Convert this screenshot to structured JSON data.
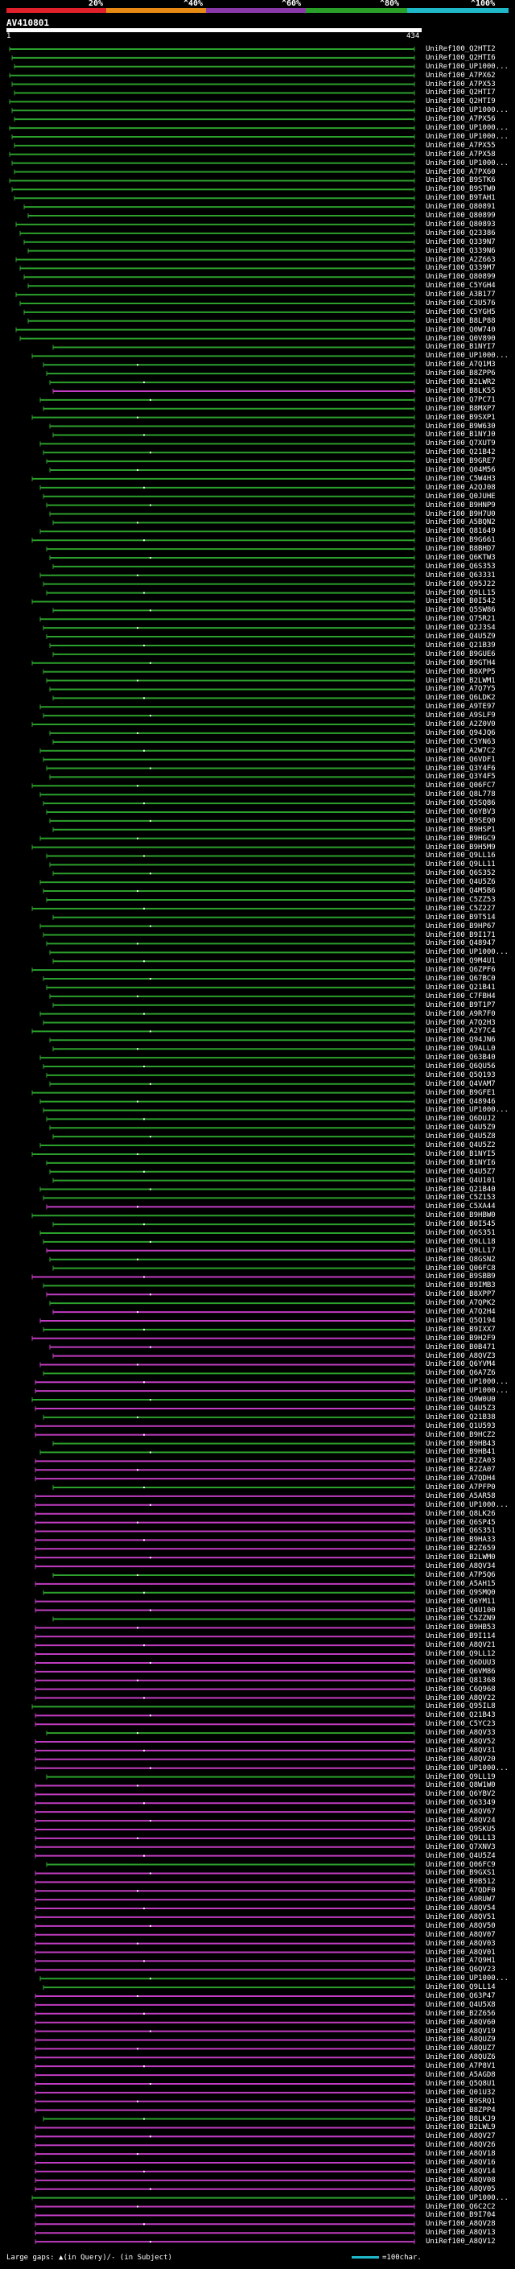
{
  "header": {
    "percent_labels": [
      "20%",
      "^40%",
      "^60%",
      "^80%",
      "^100%"
    ],
    "color_scale": [
      "#e0202a",
      "#e88a16",
      "#8a3aa8",
      "#2aa02a",
      "#1fb8c8"
    ],
    "query_name": "AV410801",
    "query_start": "1",
    "query_end": "434"
  },
  "hit_colors": {
    "green": "#2ca02c",
    "magenta": "#c03cc0",
    "gap": "#ffffff"
  },
  "hits": [
    {
      "label": "UniRef100_Q2HTI2",
      "c": "g"
    },
    {
      "label": "UniRef100_Q2HTI6",
      "c": "g"
    },
    {
      "label": "UniRef100_UP1000...",
      "c": "g"
    },
    {
      "label": "UniRef100_A7PX62",
      "c": "g"
    },
    {
      "label": "UniRef100_A7PX53",
      "c": "g"
    },
    {
      "label": "UniRef100_Q2HTI7",
      "c": "g"
    },
    {
      "label": "UniRef100_Q2HTI9",
      "c": "g"
    },
    {
      "label": "UniRef100_UP1000...",
      "c": "g"
    },
    {
      "label": "UniRef100_A7PX56",
      "c": "g"
    },
    {
      "label": "UniRef100_UP1000...",
      "c": "g"
    },
    {
      "label": "UniRef100_UP1000...",
      "c": "g"
    },
    {
      "label": "UniRef100_A7PX55",
      "c": "g"
    },
    {
      "label": "UniRef100_A7PX58",
      "c": "g"
    },
    {
      "label": "UniRef100_UP1000...",
      "c": "g"
    },
    {
      "label": "UniRef100_A7PX60",
      "c": "g"
    },
    {
      "label": "UniRef100_B9STK6",
      "c": "g"
    },
    {
      "label": "UniRef100_B9STW0",
      "c": "g"
    },
    {
      "label": "UniRef100_B9TAH1",
      "c": "g"
    },
    {
      "label": "UniRef100_Q80891",
      "c": "g"
    },
    {
      "label": "UniRef100_Q80899",
      "c": "g"
    },
    {
      "label": "UniRef100_Q80893",
      "c": "g"
    },
    {
      "label": "UniRef100_Q23386",
      "c": "g"
    },
    {
      "label": "UniRef100_Q339N7",
      "c": "g"
    },
    {
      "label": "UniRef100_Q339N6",
      "c": "g"
    },
    {
      "label": "UniRef100_A2Z663",
      "c": "g"
    },
    {
      "label": "UniRef100_Q339M7",
      "c": "g"
    },
    {
      "label": "UniRef100_Q80899",
      "c": "g"
    },
    {
      "label": "UniRef100_C5YGH4",
      "c": "g"
    },
    {
      "label": "UniRef100_A3B177",
      "c": "g"
    },
    {
      "label": "UniRef100_C3U576",
      "c": "g"
    },
    {
      "label": "UniRef100_C5YGH5",
      "c": "g"
    },
    {
      "label": "UniRef100_B8LP88",
      "c": "g"
    },
    {
      "label": "UniRef100_Q0W740",
      "c": "g"
    },
    {
      "label": "UniRef100_Q0V890",
      "c": "g"
    },
    {
      "label": "UniRef100_B1NYI7",
      "c": "g"
    },
    {
      "label": "UniRef100_UP1000...",
      "c": "g"
    },
    {
      "label": "UniRef100_A7Q1M3",
      "c": "g"
    },
    {
      "label": "UniRef100_B8ZPP6",
      "c": "g"
    },
    {
      "label": "UniRef100_B2LWR2",
      "c": "g"
    },
    {
      "label": "UniRef100_B8LK55",
      "c": "m"
    },
    {
      "label": "UniRef100_Q7PC71",
      "c": "g"
    },
    {
      "label": "UniRef100_B8MXP7",
      "c": "g"
    },
    {
      "label": "UniRef100_B9SXP1",
      "c": "g"
    },
    {
      "label": "UniRef100_B9W630",
      "c": "g"
    },
    {
      "label": "UniRef100_B1NYJ0",
      "c": "g"
    },
    {
      "label": "UniRef100_Q7XUT9",
      "c": "g"
    },
    {
      "label": "UniRef100_Q21B42",
      "c": "g"
    },
    {
      "label": "UniRef100_B9GRE7",
      "c": "g"
    },
    {
      "label": "UniRef100_Q04M56",
      "c": "g"
    },
    {
      "label": "UniRef100_C5W4H3",
      "c": "g"
    },
    {
      "label": "UniRef100_A2QJ08",
      "c": "g"
    },
    {
      "label": "UniRef100_Q0JUHE",
      "c": "g"
    },
    {
      "label": "UniRef100_B9HNP9",
      "c": "g"
    },
    {
      "label": "UniRef100_B9H7U0",
      "c": "g"
    },
    {
      "label": "UniRef100_A5BQN2",
      "c": "g"
    },
    {
      "label": "UniRef100_Q81649",
      "c": "g"
    },
    {
      "label": "UniRef100_B9G661",
      "c": "g"
    },
    {
      "label": "UniRef100_B8BHD7",
      "c": "g"
    },
    {
      "label": "UniRef100_Q6KTW3",
      "c": "g"
    },
    {
      "label": "UniRef100_Q6S353",
      "c": "g"
    },
    {
      "label": "UniRef100_Q63331",
      "c": "g"
    },
    {
      "label": "UniRef100_Q95J22",
      "c": "g"
    },
    {
      "label": "UniRef100_Q9LL15",
      "c": "g"
    },
    {
      "label": "UniRef100_B0I542",
      "c": "g"
    },
    {
      "label": "UniRef100_Q5SW86",
      "c": "g"
    },
    {
      "label": "UniRef100_Q75R21",
      "c": "g"
    },
    {
      "label": "UniRef100_Q2J3S4",
      "c": "g"
    },
    {
      "label": "UniRef100_Q4U5Z9",
      "c": "g"
    },
    {
      "label": "UniRef100_Q21B39",
      "c": "g"
    },
    {
      "label": "UniRef100_B9GUE6",
      "c": "g"
    },
    {
      "label": "UniRef100_B9GTH4",
      "c": "g"
    },
    {
      "label": "UniRef100_B8XPP5",
      "c": "g"
    },
    {
      "label": "UniRef100_B2LWM1",
      "c": "g"
    },
    {
      "label": "UniRef100_A7Q7Y5",
      "c": "g"
    },
    {
      "label": "UniRef100_Q6LDK2",
      "c": "g"
    },
    {
      "label": "UniRef100_A9TE97",
      "c": "g"
    },
    {
      "label": "UniRef100_A9SLF9",
      "c": "g"
    },
    {
      "label": "UniRef100_A2Z0V0",
      "c": "g"
    },
    {
      "label": "UniRef100_Q94JQ6",
      "c": "g"
    },
    {
      "label": "UniRef100_C5YN63",
      "c": "g"
    },
    {
      "label": "UniRef100_A2W7C2",
      "c": "g"
    },
    {
      "label": "UniRef100_Q6VDF1",
      "c": "g"
    },
    {
      "label": "UniRef100_Q3Y4F6",
      "c": "g"
    },
    {
      "label": "UniRef100_Q3Y4F5",
      "c": "g"
    },
    {
      "label": "UniRef100_Q06FC7",
      "c": "g"
    },
    {
      "label": "UniRef100_Q8L778",
      "c": "g"
    },
    {
      "label": "UniRef100_Q5SQ86",
      "c": "g"
    },
    {
      "label": "UniRef100_Q6YBV3",
      "c": "g"
    },
    {
      "label": "UniRef100_B9SEQ0",
      "c": "g"
    },
    {
      "label": "UniRef100_B9HSP1",
      "c": "g"
    },
    {
      "label": "UniRef100_B9HGC9",
      "c": "g"
    },
    {
      "label": "UniRef100_B9H5M9",
      "c": "g"
    },
    {
      "label": "UniRef100_Q9LL16",
      "c": "g"
    },
    {
      "label": "UniRef100_Q9LL11",
      "c": "g"
    },
    {
      "label": "UniRef100_Q6S352",
      "c": "g"
    },
    {
      "label": "UniRef100_Q4U5Z6",
      "c": "g"
    },
    {
      "label": "UniRef100_Q4M5B6",
      "c": "g"
    },
    {
      "label": "UniRef100_C5ZZ53",
      "c": "g"
    },
    {
      "label": "UniRef100_C5Z227",
      "c": "g"
    },
    {
      "label": "UniRef100_B9T514",
      "c": "g"
    },
    {
      "label": "UniRef100_B9HP67",
      "c": "g"
    },
    {
      "label": "UniRef100_B9I171",
      "c": "g"
    },
    {
      "label": "UniRef100_Q48947",
      "c": "g"
    },
    {
      "label": "UniRef100_UP1000...",
      "c": "g"
    },
    {
      "label": "UniRef100_Q9M4U1",
      "c": "g"
    },
    {
      "label": "UniRef100_Q6ZPF6",
      "c": "g"
    },
    {
      "label": "UniRef100_Q67BC0",
      "c": "g"
    },
    {
      "label": "UniRef100_Q21B41",
      "c": "g"
    },
    {
      "label": "UniRef100_C7FBH4",
      "c": "g"
    },
    {
      "label": "UniRef100_B9T1P7",
      "c": "g"
    },
    {
      "label": "UniRef100_A9R7F0",
      "c": "g"
    },
    {
      "label": "UniRef100_A7Q2H3",
      "c": "g"
    },
    {
      "label": "UniRef100_A2Y7C4",
      "c": "g"
    },
    {
      "label": "UniRef100_Q94JN6",
      "c": "g"
    },
    {
      "label": "UniRef100_Q9ALL0",
      "c": "g"
    },
    {
      "label": "UniRef100_Q63B40",
      "c": "g"
    },
    {
      "label": "UniRef100_Q6QU56",
      "c": "g"
    },
    {
      "label": "UniRef100_Q5Q193",
      "c": "g"
    },
    {
      "label": "UniRef100_Q4VAM7",
      "c": "g"
    },
    {
      "label": "UniRef100_B9GFE1",
      "c": "g"
    },
    {
      "label": "UniRef100_Q48946",
      "c": "g"
    },
    {
      "label": "UniRef100_UP1000...",
      "c": "g"
    },
    {
      "label": "UniRef100_Q6DUJ2",
      "c": "g"
    },
    {
      "label": "UniRef100_Q4U5Z9",
      "c": "g"
    },
    {
      "label": "UniRef100_Q4U5Z8",
      "c": "g"
    },
    {
      "label": "UniRef100_Q4U5Z2",
      "c": "g"
    },
    {
      "label": "UniRef100_B1NYI5",
      "c": "g"
    },
    {
      "label": "UniRef100_B1NYI6",
      "c": "g"
    },
    {
      "label": "UniRef100_Q4U5Z7",
      "c": "g"
    },
    {
      "label": "UniRef100_Q4U101",
      "c": "g"
    },
    {
      "label": "UniRef100_Q21B40",
      "c": "g"
    },
    {
      "label": "UniRef100_C5Z153",
      "c": "g"
    },
    {
      "label": "UniRef100_C5XA44",
      "c": "m"
    },
    {
      "label": "UniRef100_B9HBW0",
      "c": "g"
    },
    {
      "label": "UniRef100_B0I545",
      "c": "g"
    },
    {
      "label": "UniRef100_Q6S351",
      "c": "g"
    },
    {
      "label": "UniRef100_Q9LL18",
      "c": "g"
    },
    {
      "label": "UniRef100_Q9LL17",
      "c": "m"
    },
    {
      "label": "UniRef100_Q8GSN2",
      "c": "g"
    },
    {
      "label": "UniRef100_Q06FC8",
      "c": "g"
    },
    {
      "label": "UniRef100_B9SBB9",
      "c": "m"
    },
    {
      "label": "UniRef100_B9IMB3",
      "c": "g"
    },
    {
      "label": "UniRef100_B8XPP7",
      "c": "m"
    },
    {
      "label": "UniRef100_A7QPK2",
      "c": "g"
    },
    {
      "label": "UniRef100_A7Q2H4",
      "c": "m"
    },
    {
      "label": "UniRef100_Q5Q194",
      "c": "m"
    },
    {
      "label": "UniRef100_B9IXX7",
      "c": "g"
    },
    {
      "label": "UniRef100_B9H2F9",
      "c": "m"
    },
    {
      "label": "UniRef100_B0B471",
      "c": "m"
    },
    {
      "label": "UniRef100_A8QVZ3",
      "c": "m"
    },
    {
      "label": "UniRef100_Q6YVM4",
      "c": "m"
    },
    {
      "label": "UniRef100_Q6A7Z6",
      "c": "g"
    },
    {
      "label": "UniRef100_UP1000...",
      "c": "m"
    },
    {
      "label": "UniRef100_UP1000...",
      "c": "m"
    },
    {
      "label": "UniRef100_Q9W0U0",
      "c": "g"
    },
    {
      "label": "UniRef100_Q4U5Z3",
      "c": "m"
    },
    {
      "label": "UniRef100_Q21B38",
      "c": "g"
    },
    {
      "label": "UniRef100_Q1U593",
      "c": "m"
    },
    {
      "label": "UniRef100_B9HCZ2",
      "c": "m"
    },
    {
      "label": "UniRef100_B9HB43",
      "c": "g"
    },
    {
      "label": "UniRef100_B9HB41",
      "c": "g"
    },
    {
      "label": "UniRef100_B2ZA03",
      "c": "m"
    },
    {
      "label": "UniRef100_B2ZA07",
      "c": "m"
    },
    {
      "label": "UniRef100_A7QDH4",
      "c": "m"
    },
    {
      "label": "UniRef100_A7PFP0",
      "c": "g"
    },
    {
      "label": "UniRef100_A5AR58",
      "c": "m"
    },
    {
      "label": "UniRef100_UP1000...",
      "c": "m"
    },
    {
      "label": "UniRef100_Q8LK26",
      "c": "m"
    },
    {
      "label": "UniRef100_Q6SP45",
      "c": "m"
    },
    {
      "label": "UniRef100_Q6S351",
      "c": "m"
    },
    {
      "label": "UniRef100_B9HA33",
      "c": "m"
    },
    {
      "label": "UniRef100_B2Z659",
      "c": "m"
    },
    {
      "label": "UniRef100_B2LWM0",
      "c": "m"
    },
    {
      "label": "UniRef100_A8QV34",
      "c": "m"
    },
    {
      "label": "UniRef100_A7P5Q6",
      "c": "g"
    },
    {
      "label": "UniRef100_A5AH15",
      "c": "m"
    },
    {
      "label": "UniRef100_Q9SMQ0",
      "c": "g"
    },
    {
      "label": "UniRef100_Q6YM11",
      "c": "m"
    },
    {
      "label": "UniRef100_Q4U100",
      "c": "m"
    },
    {
      "label": "UniRef100_C5ZZN9",
      "c": "g"
    },
    {
      "label": "UniRef100_B9HB53",
      "c": "m"
    },
    {
      "label": "UniRef100_B9I114",
      "c": "m"
    },
    {
      "label": "UniRef100_A8QV21",
      "c": "m"
    },
    {
      "label": "UniRef100_Q9LL12",
      "c": "m"
    },
    {
      "label": "UniRef100_Q6DUU3",
      "c": "m"
    },
    {
      "label": "UniRef100_Q6VM86",
      "c": "m"
    },
    {
      "label": "UniRef100_Q81368",
      "c": "m"
    },
    {
      "label": "UniRef100_C6Q968",
      "c": "m"
    },
    {
      "label": "UniRef100_A8QV22",
      "c": "m"
    },
    {
      "label": "UniRef100_Q95IL8",
      "c": "g"
    },
    {
      "label": "UniRef100_Q21B43",
      "c": "m"
    },
    {
      "label": "UniRef100_C5YC23",
      "c": "m"
    },
    {
      "label": "UniRef100_A8QV33",
      "c": "g"
    },
    {
      "label": "UniRef100_A8QV52",
      "c": "m"
    },
    {
      "label": "UniRef100_A8QV31",
      "c": "m"
    },
    {
      "label": "UniRef100_A8QV20",
      "c": "m"
    },
    {
      "label": "UniRef100_UP1000...",
      "c": "m"
    },
    {
      "label": "UniRef100_Q9LL19",
      "c": "g"
    },
    {
      "label": "UniRef100_Q8W1W0",
      "c": "m"
    },
    {
      "label": "UniRef100_Q6YBV2",
      "c": "m"
    },
    {
      "label": "UniRef100_Q63349",
      "c": "m"
    },
    {
      "label": "UniRef100_A8QV67",
      "c": "m"
    },
    {
      "label": "UniRef100_A8QV24",
      "c": "m"
    },
    {
      "label": "UniRef100_Q9SKU5",
      "c": "m"
    },
    {
      "label": "UniRef100_Q9LL13",
      "c": "m"
    },
    {
      "label": "UniRef100_Q7XNV3",
      "c": "m"
    },
    {
      "label": "UniRef100_Q4U5Z4",
      "c": "m"
    },
    {
      "label": "UniRef100_Q06FC9",
      "c": "g"
    },
    {
      "label": "UniRef100_B9GXS1",
      "c": "m"
    },
    {
      "label": "UniRef100_B0B512",
      "c": "m"
    },
    {
      "label": "UniRef100_A7QDF0",
      "c": "m"
    },
    {
      "label": "UniRef100_A9RUW7",
      "c": "m"
    },
    {
      "label": "UniRef100_A8QV54",
      "c": "m"
    },
    {
      "label": "UniRef100_A8QV51",
      "c": "m"
    },
    {
      "label": "UniRef100_A8QV50",
      "c": "m"
    },
    {
      "label": "UniRef100_A8QV07",
      "c": "m"
    },
    {
      "label": "UniRef100_A8QV03",
      "c": "m"
    },
    {
      "label": "UniRef100_A8QV01",
      "c": "m"
    },
    {
      "label": "UniRef100_A7Q9H1",
      "c": "m"
    },
    {
      "label": "UniRef100_Q6QV23",
      "c": "m"
    },
    {
      "label": "UniRef100_UP1000...",
      "c": "g"
    },
    {
      "label": "UniRef100_Q9LL14",
      "c": "g"
    },
    {
      "label": "UniRef100_Q63P47",
      "c": "m"
    },
    {
      "label": "UniRef100_Q4U5X8",
      "c": "m"
    },
    {
      "label": "UniRef100_B2Z656",
      "c": "m"
    },
    {
      "label": "UniRef100_A8QV60",
      "c": "m"
    },
    {
      "label": "UniRef100_A8QV19",
      "c": "m"
    },
    {
      "label": "UniRef100_A8QUZ9",
      "c": "m"
    },
    {
      "label": "UniRef100_A8QUZ7",
      "c": "m"
    },
    {
      "label": "UniRef100_A8QUZ6",
      "c": "m"
    },
    {
      "label": "UniRef100_A7P8V1",
      "c": "m"
    },
    {
      "label": "UniRef100_A5AGD8",
      "c": "m"
    },
    {
      "label": "UniRef100_Q5Q8U1",
      "c": "m"
    },
    {
      "label": "UniRef100_Q01U32",
      "c": "m"
    },
    {
      "label": "UniRef100_B9SRQ1",
      "c": "m"
    },
    {
      "label": "UniRef100_B8ZPP4",
      "c": "m"
    },
    {
      "label": "UniRef100_B8LKJ9",
      "c": "g"
    },
    {
      "label": "UniRef100_B2LWL9",
      "c": "m"
    },
    {
      "label": "UniRef100_A8QV27",
      "c": "m"
    },
    {
      "label": "UniRef100_A8QV26",
      "c": "m"
    },
    {
      "label": "UniRef100_A8QV18",
      "c": "m"
    },
    {
      "label": "UniRef100_A8QV16",
      "c": "m"
    },
    {
      "label": "UniRef100_A8QV14",
      "c": "m"
    },
    {
      "label": "UniRef100_A8QV08",
      "c": "m"
    },
    {
      "label": "UniRef100_A8QV05",
      "c": "m"
    },
    {
      "label": "UniRef100_UP1000...",
      "c": "g"
    },
    {
      "label": "UniRef100_Q6C2C2",
      "c": "m"
    },
    {
      "label": "UniRef100_B9I704",
      "c": "m"
    },
    {
      "label": "UniRef100_A8QV28",
      "c": "m"
    },
    {
      "label": "UniRef100_A8QV13",
      "c": "m"
    },
    {
      "label": "UniRef100_A8QV12",
      "c": "m"
    }
  ],
  "legend": {
    "large_gaps_label": "Large gaps:",
    "in_query": "(in Query)",
    "in_subject": "(in Subject)",
    "scale_label": "=100char."
  }
}
